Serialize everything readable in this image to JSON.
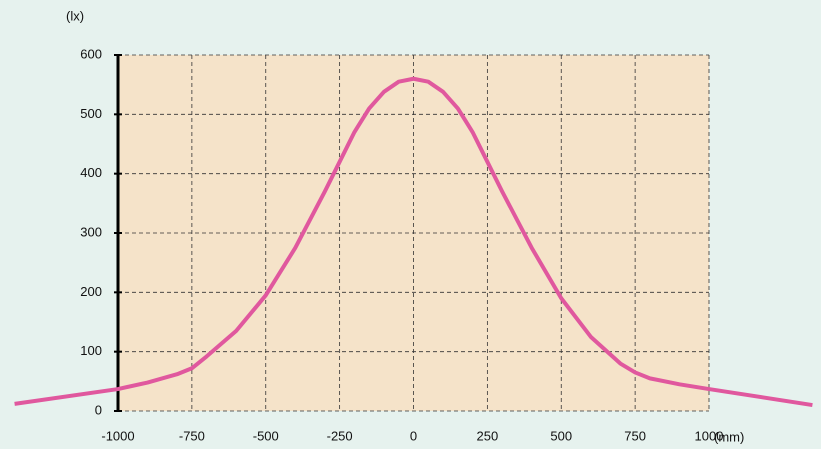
{
  "chart_data": {
    "type": "line",
    "y_axis_label": "(lx)",
    "x_axis_label": "(mm)",
    "x": [
      -1350,
      -1000,
      -900,
      -800,
      -750,
      -700,
      -600,
      -500,
      -400,
      -300,
      -250,
      -200,
      -150,
      -100,
      -50,
      0,
      50,
      100,
      150,
      200,
      250,
      300,
      400,
      500,
      600,
      700,
      750,
      800,
      900,
      1000,
      1350
    ],
    "series": [
      {
        "name": null,
        "color": "#e0589e",
        "values": [
          12,
          37,
          48,
          62,
          72,
          92,
          135,
          195,
          275,
          370,
          420,
          470,
          510,
          538,
          555,
          560,
          555,
          538,
          510,
          470,
          420,
          370,
          275,
          190,
          125,
          80,
          65,
          55,
          45,
          37,
          10
        ]
      }
    ],
    "xlim": [
      -1000,
      1000
    ],
    "xticks": [
      -1000,
      -750,
      -500,
      -250,
      0,
      250,
      500,
      750,
      1000
    ],
    "ylim": [
      0,
      600
    ],
    "yticks": [
      0,
      100,
      200,
      300,
      400,
      500,
      600
    ],
    "grid": true
  }
}
